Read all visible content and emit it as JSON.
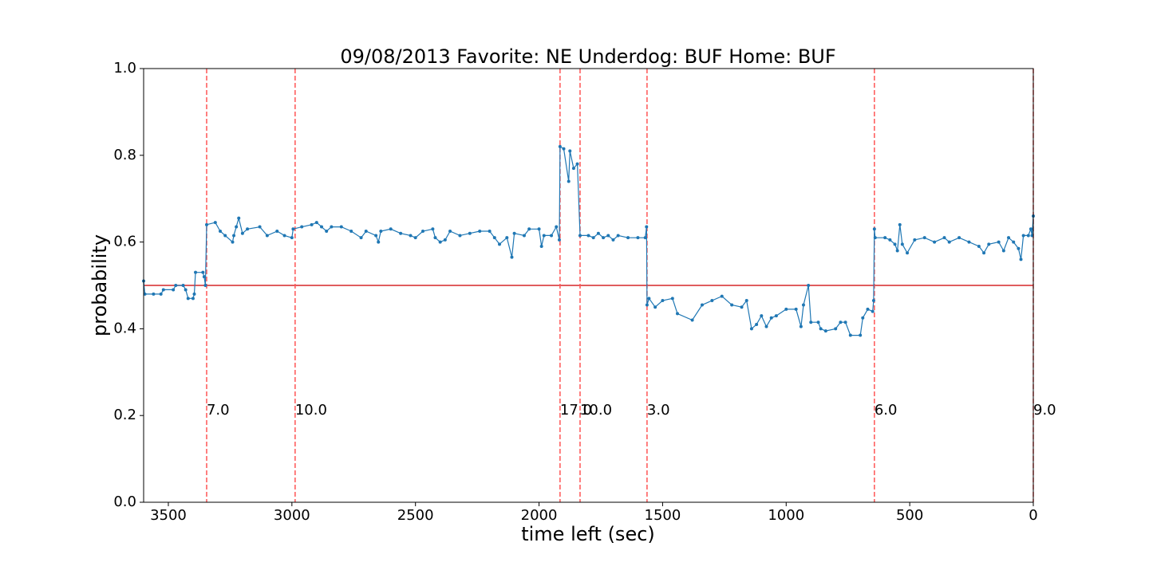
{
  "chart_data": {
    "type": "line",
    "title": "09/08/2013 Favorite: NE Underdog: BUF Home: BUF",
    "x_label": "time left (sec)",
    "y_label": "probability",
    "xlim": [
      3600,
      0
    ],
    "ylim": [
      0,
      1
    ],
    "xticks": [
      3500,
      3000,
      2500,
      2000,
      1500,
      1000,
      500,
      0
    ],
    "yticks": [
      {
        "value": 0,
        "label": "0.0"
      },
      {
        "value": 0.2,
        "label": "0.2"
      },
      {
        "value": 0.4,
        "label": "0.4"
      },
      {
        "value": 0.6,
        "label": "0.6"
      },
      {
        "value": 0.8,
        "label": "0.8"
      },
      {
        "value": 1,
        "label": "1.0"
      }
    ],
    "reference_line": {
      "y": 0.5,
      "color": "#d62728"
    },
    "events": {
      "color": "#ff5555",
      "label_y": 0.2,
      "x": [
        3345,
        2987,
        1915,
        1834,
        1563,
        643,
        0
      ],
      "labels": [
        "7.0",
        "10.0",
        "17.0",
        "10.0",
        "3.0",
        "6.0",
        "9.0"
      ]
    },
    "series": [
      {
        "color": "#1f77b4",
        "x": [
          3600,
          3595,
          3560,
          3530,
          3520,
          3480,
          3470,
          3440,
          3430,
          3420,
          3400,
          3395,
          3390,
          3360,
          3355,
          3350,
          3345,
          3310,
          3290,
          3270,
          3240,
          3235,
          3225,
          3215,
          3200,
          3180,
          3130,
          3100,
          3060,
          3030,
          3000,
          2995,
          2960,
          2920,
          2900,
          2880,
          2860,
          2840,
          2800,
          2760,
          2720,
          2700,
          2660,
          2650,
          2640,
          2600,
          2560,
          2520,
          2500,
          2470,
          2430,
          2420,
          2400,
          2380,
          2360,
          2320,
          2280,
          2240,
          2200,
          2180,
          2160,
          2130,
          2110,
          2100,
          2060,
          2040,
          2000,
          1990,
          1980,
          1950,
          1930,
          1918,
          1915,
          1900,
          1880,
          1875,
          1860,
          1845,
          1834,
          1800,
          1780,
          1760,
          1740,
          1720,
          1700,
          1680,
          1640,
          1600,
          1570,
          1565,
          1563,
          1555,
          1530,
          1500,
          1460,
          1440,
          1380,
          1340,
          1300,
          1260,
          1220,
          1180,
          1160,
          1140,
          1120,
          1100,
          1080,
          1060,
          1040,
          1000,
          960,
          940,
          930,
          910,
          900,
          870,
          860,
          840,
          800,
          780,
          760,
          740,
          700,
          690,
          670,
          650,
          646,
          643,
          640,
          600,
          580,
          560,
          550,
          540,
          530,
          510,
          480,
          440,
          400,
          360,
          340,
          300,
          260,
          220,
          200,
          180,
          140,
          120,
          100,
          80,
          60,
          50,
          40,
          20,
          10,
          5,
          0
        ],
        "values": [
          0.51,
          0.48,
          0.48,
          0.48,
          0.49,
          0.49,
          0.5,
          0.5,
          0.49,
          0.47,
          0.47,
          0.48,
          0.53,
          0.53,
          0.52,
          0.5,
          0.64,
          0.645,
          0.625,
          0.615,
          0.6,
          0.615,
          0.635,
          0.655,
          0.62,
          0.63,
          0.635,
          0.615,
          0.625,
          0.615,
          0.61,
          0.63,
          0.635,
          0.64,
          0.645,
          0.635,
          0.625,
          0.635,
          0.635,
          0.625,
          0.61,
          0.625,
          0.615,
          0.6,
          0.625,
          0.63,
          0.62,
          0.615,
          0.61,
          0.625,
          0.63,
          0.61,
          0.6,
          0.605,
          0.625,
          0.615,
          0.62,
          0.625,
          0.625,
          0.61,
          0.595,
          0.61,
          0.565,
          0.62,
          0.615,
          0.63,
          0.63,
          0.59,
          0.615,
          0.615,
          0.635,
          0.605,
          0.82,
          0.815,
          0.74,
          0.81,
          0.77,
          0.78,
          0.615,
          0.615,
          0.61,
          0.62,
          0.61,
          0.615,
          0.605,
          0.615,
          0.61,
          0.61,
          0.61,
          0.635,
          0.455,
          0.47,
          0.45,
          0.465,
          0.47,
          0.435,
          0.42,
          0.455,
          0.465,
          0.475,
          0.455,
          0.45,
          0.465,
          0.4,
          0.41,
          0.43,
          0.405,
          0.425,
          0.43,
          0.445,
          0.445,
          0.405,
          0.455,
          0.5,
          0.415,
          0.415,
          0.4,
          0.395,
          0.4,
          0.415,
          0.415,
          0.385,
          0.385,
          0.425,
          0.445,
          0.44,
          0.465,
          0.63,
          0.61,
          0.61,
          0.605,
          0.595,
          0.58,
          0.64,
          0.595,
          0.575,
          0.605,
          0.61,
          0.6,
          0.61,
          0.6,
          0.61,
          0.6,
          0.59,
          0.575,
          0.595,
          0.6,
          0.58,
          0.61,
          0.6,
          0.585,
          0.56,
          0.615,
          0.615,
          0.63,
          0.615,
          0.66
        ]
      }
    ]
  }
}
